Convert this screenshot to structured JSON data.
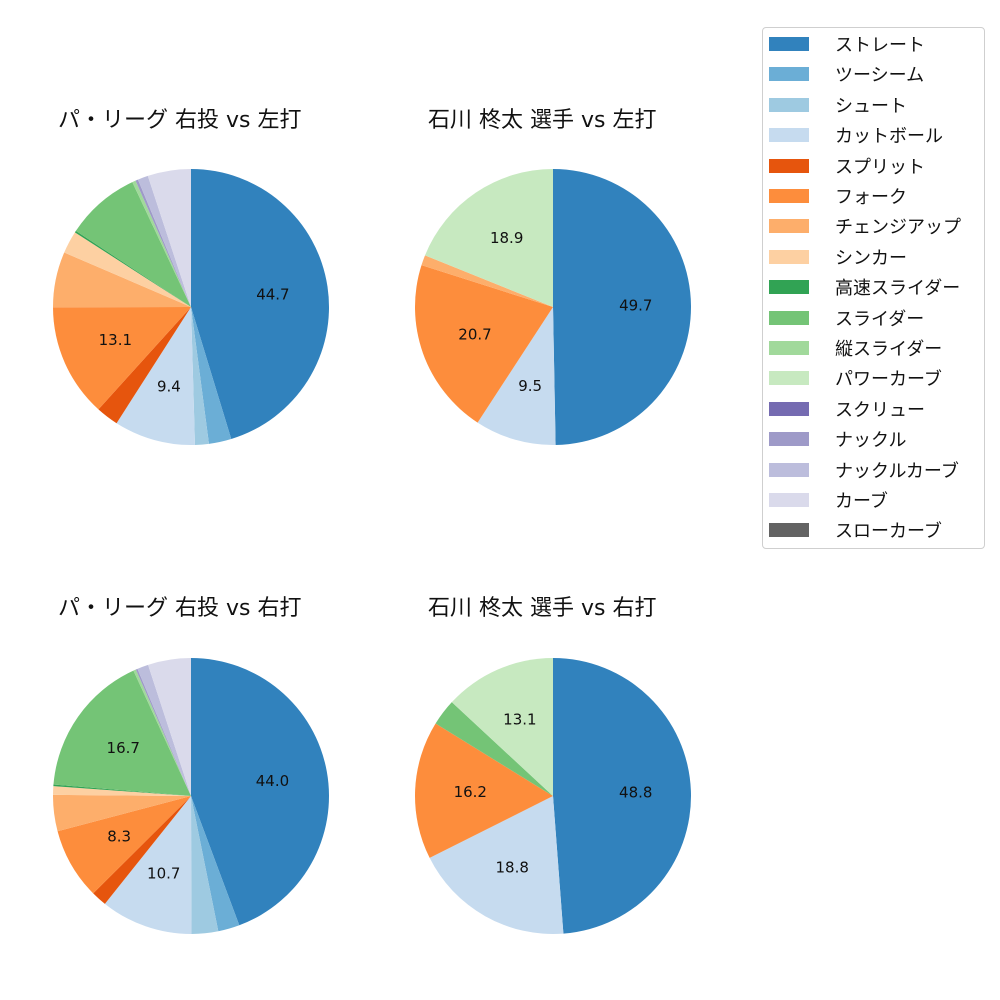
{
  "colors": {
    "ストレート": "#3182bd",
    "ツーシーム": "#6baed6",
    "シュート": "#9ecae1",
    "カットボール": "#c6dbef",
    "スプリット": "#e6550d",
    "フォーク": "#fd8d3c",
    "チェンジアップ": "#fdae6b",
    "シンカー": "#fdd0a2",
    "高速スライダー": "#31a354",
    "スライダー": "#74c476",
    "縦スライダー": "#a1d99b",
    "パワーカーブ": "#c7e9c0",
    "スクリュー": "#756bb1",
    "ナックル": "#9e9ac8",
    "ナックルカーブ": "#bcbddc",
    "カーブ": "#dadaeb",
    "スローカーブ": "#636363"
  },
  "legend": {
    "items": [
      "ストレート",
      "ツーシーム",
      "シュート",
      "カットボール",
      "スプリット",
      "フォーク",
      "チェンジアップ",
      "シンカー",
      "高速スライダー",
      "スライダー",
      "縦スライダー",
      "パワーカーブ",
      "スクリュー",
      "ナックル",
      "ナックルカーブ",
      "カーブ",
      "スローカーブ"
    ]
  },
  "chart_data": [
    {
      "type": "pie",
      "title": "パ・リーグ 右投 vs 左打",
      "slices": [
        {
          "name": "ストレート",
          "value": 44.7,
          "label": "44.7"
        },
        {
          "name": "ツーシーム",
          "value": 2.6,
          "label": ""
        },
        {
          "name": "シュート",
          "value": 1.6,
          "label": ""
        },
        {
          "name": "カットボール",
          "value": 9.4,
          "label": "9.4"
        },
        {
          "name": "スプリット",
          "value": 2.6,
          "label": ""
        },
        {
          "name": "フォーク",
          "value": 13.1,
          "label": "13.1"
        },
        {
          "name": "チェンジアップ",
          "value": 6.4,
          "label": ""
        },
        {
          "name": "シンカー",
          "value": 2.6,
          "label": ""
        },
        {
          "name": "高速スライダー",
          "value": 0.2,
          "label": ""
        },
        {
          "name": "スライダー",
          "value": 8.6,
          "label": ""
        },
        {
          "name": "縦スライダー",
          "value": 0.4,
          "label": ""
        },
        {
          "name": "ナックル",
          "value": 0.3,
          "label": ""
        },
        {
          "name": "ナックルカーブ",
          "value": 1.2,
          "label": ""
        },
        {
          "name": "カーブ",
          "value": 5.0,
          "label": ""
        }
      ]
    },
    {
      "type": "pie",
      "title": "石川 柊太 選手 vs 左打",
      "slices": [
        {
          "name": "ストレート",
          "value": 49.7,
          "label": "49.7"
        },
        {
          "name": "カットボール",
          "value": 9.5,
          "label": "9.5"
        },
        {
          "name": "フォーク",
          "value": 20.7,
          "label": "20.7"
        },
        {
          "name": "チェンジアップ",
          "value": 1.2,
          "label": ""
        },
        {
          "name": "パワーカーブ",
          "value": 18.9,
          "label": "18.9"
        }
      ]
    },
    {
      "type": "pie",
      "title": "パ・リーグ 右投 vs 右打",
      "slices": [
        {
          "name": "ストレート",
          "value": 44.0,
          "label": "44.0"
        },
        {
          "name": "ツーシーム",
          "value": 2.5,
          "label": ""
        },
        {
          "name": "シュート",
          "value": 3.1,
          "label": ""
        },
        {
          "name": "カットボール",
          "value": 10.7,
          "label": "10.7"
        },
        {
          "name": "スプリット",
          "value": 1.8,
          "label": ""
        },
        {
          "name": "フォーク",
          "value": 8.3,
          "label": "8.3"
        },
        {
          "name": "チェンジアップ",
          "value": 4.2,
          "label": ""
        },
        {
          "name": "シンカー",
          "value": 1.0,
          "label": ""
        },
        {
          "name": "高速スライダー",
          "value": 0.2,
          "label": ""
        },
        {
          "name": "スライダー",
          "value": 16.7,
          "label": "16.7"
        },
        {
          "name": "縦スライダー",
          "value": 0.3,
          "label": ""
        },
        {
          "name": "ナックル",
          "value": 0.2,
          "label": ""
        },
        {
          "name": "ナックルカーブ",
          "value": 1.3,
          "label": ""
        },
        {
          "name": "カーブ",
          "value": 5.0,
          "label": ""
        }
      ]
    },
    {
      "type": "pie",
      "title": "石川 柊太 選手 vs 右打",
      "slices": [
        {
          "name": "ストレート",
          "value": 48.8,
          "label": "48.8"
        },
        {
          "name": "カットボール",
          "value": 18.8,
          "label": "18.8"
        },
        {
          "name": "フォーク",
          "value": 16.2,
          "label": "16.2"
        },
        {
          "name": "スライダー",
          "value": 3.1,
          "label": ""
        },
        {
          "name": "パワーカーブ",
          "value": 13.1,
          "label": "13.1"
        }
      ]
    }
  ]
}
